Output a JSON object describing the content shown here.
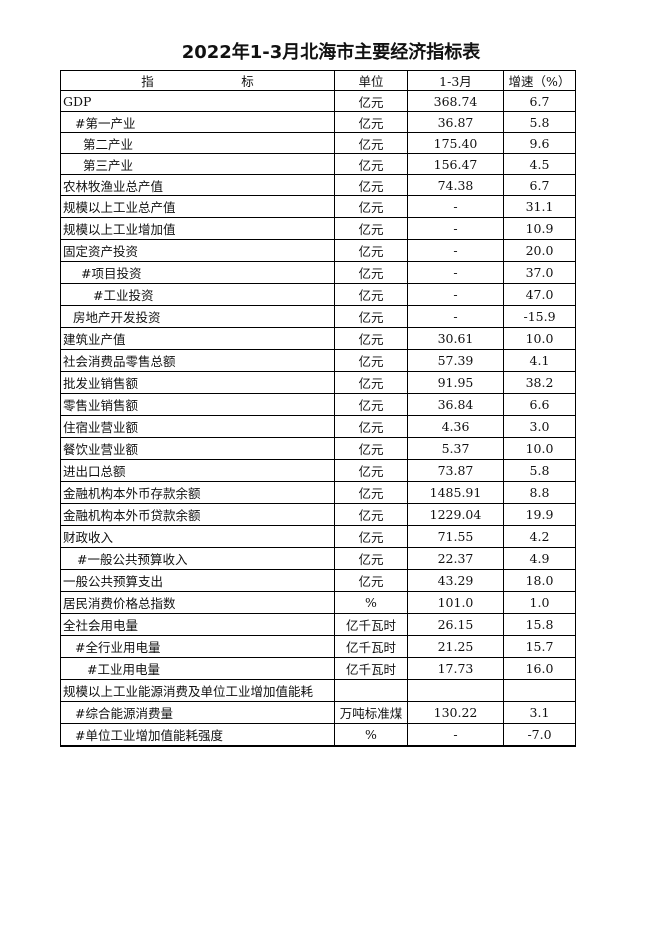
{
  "title": "2022年1-3月北海市主要经济指标表",
  "header": {
    "indicator": "指　　　　　　　标",
    "unit": "单位",
    "period": "1-3月",
    "growth": "增速（%）"
  },
  "rows": [
    {
      "name": "GDP",
      "unit": "亿元",
      "value": "368.74",
      "growth": "6.7"
    },
    {
      "name": "#第一产业",
      "unit": "亿元",
      "value": "36.87",
      "growth": "5.8"
    },
    {
      "name": "第二产业",
      "unit": "亿元",
      "value": "175.40",
      "growth": "9.6"
    },
    {
      "name": "第三产业",
      "unit": "亿元",
      "value": "156.47",
      "growth": "4.5"
    },
    {
      "name": "农林牧渔业总产值",
      "unit": "亿元",
      "value": "74.38",
      "growth": "6.7"
    },
    {
      "name": "规模以上工业总产值",
      "unit": "亿元",
      "value": "-",
      "growth": "31.1"
    },
    {
      "name": "规模以上工业增加值",
      "unit": "亿元",
      "value": "-",
      "growth": "10.9"
    },
    {
      "name": "固定资产投资",
      "unit": "亿元",
      "value": "-",
      "growth": "20.0"
    },
    {
      "name": "#项目投资",
      "unit": "亿元",
      "value": "-",
      "growth": "37.0"
    },
    {
      "name": "#工业投资",
      "unit": "亿元",
      "value": "-",
      "growth": "47.0"
    },
    {
      "name": "房地产开发投资",
      "unit": "亿元",
      "value": "-",
      "growth": "-15.9"
    },
    {
      "name": "建筑业产值",
      "unit": "亿元",
      "value": "30.61",
      "growth": "10.0"
    },
    {
      "name": "社会消费品零售总额",
      "unit": "亿元",
      "value": "57.39",
      "growth": "4.1"
    },
    {
      "name": "批发业销售额",
      "unit": "亿元",
      "value": "91.95",
      "growth": "38.2"
    },
    {
      "name": "零售业销售额",
      "unit": "亿元",
      "value": "36.84",
      "growth": "6.6"
    },
    {
      "name": "住宿业营业额",
      "unit": "亿元",
      "value": "4.36",
      "growth": "3.0"
    },
    {
      "name": "餐饮业营业额",
      "unit": "亿元",
      "value": "5.37",
      "growth": "10.0"
    },
    {
      "name": "进出口总额",
      "unit": "亿元",
      "value": "73.87",
      "growth": "5.8"
    },
    {
      "name": "金融机构本外币存款余额",
      "unit": "亿元",
      "value": "1485.91",
      "growth": "8.8"
    },
    {
      "name": "金融机构本外币贷款余额",
      "unit": "亿元",
      "value": "1229.04",
      "growth": "19.9"
    },
    {
      "name": "财政收入",
      "unit": "亿元",
      "value": "71.55",
      "growth": "4.2"
    },
    {
      "name": "#一般公共预算收入",
      "unit": "亿元",
      "value": "22.37",
      "growth": "4.9"
    },
    {
      "name": "一般公共预算支出",
      "unit": "亿元",
      "value": "43.29",
      "growth": "18.0"
    },
    {
      "name": "居民消费价格总指数",
      "unit": "%",
      "value": "101.0",
      "growth": "1.0"
    },
    {
      "name": "全社会用电量",
      "unit": "亿千瓦时",
      "value": "26.15",
      "growth": "15.8"
    },
    {
      "name": "#全行业用电量",
      "unit": "亿千瓦时",
      "value": "21.25",
      "growth": "15.7"
    },
    {
      "name": "#工业用电量",
      "unit": "亿千瓦时",
      "value": "17.73",
      "growth": "16.0"
    },
    {
      "name": "规模以上工业能源消费及单位工业增加值能耗",
      "unit": "",
      "value": "",
      "growth": ""
    },
    {
      "name": "#综合能源消费量",
      "unit": "万吨标准煤",
      "value": "130.22",
      "growth": "3.1"
    },
    {
      "name": "#单位工业增加值能耗强度",
      "unit": "%",
      "value": "-",
      "growth": "-7.0"
    }
  ]
}
